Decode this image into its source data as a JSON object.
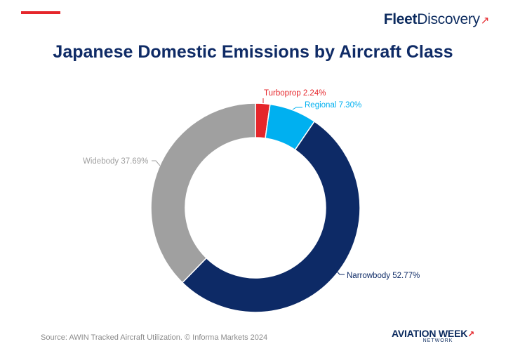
{
  "brand": {
    "part1": "Fleet",
    "part2": "Discovery",
    "swoosh": "↗"
  },
  "colors": {
    "accent": "#e5262b",
    "title": "#0f2b66",
    "turboprop": "#e5262b",
    "regional": "#00b0f0",
    "narrowbody": "#0d2a66",
    "widebody": "#a0a0a0"
  },
  "footer": {
    "source": "Source: AWIN Tracked Aircraft Utilization. © Informa Markets 2024"
  },
  "logo": {
    "line1": "AVIATION WEEK",
    "line2": "NETWORK",
    "tick": "↗"
  },
  "chart_data": {
    "type": "pie",
    "style": "donut",
    "title": "Japanese Domestic Emissions by Aircraft Class",
    "series": [
      {
        "name": "Turboprop",
        "value": 2.24,
        "label": "Turboprop 2.24%",
        "color": "#e5262b"
      },
      {
        "name": "Regional",
        "value": 7.3,
        "label": "Regional 7.30%",
        "color": "#00b0f0"
      },
      {
        "name": "Narrowbody",
        "value": 52.77,
        "label": "Narrowbody 52.77%",
        "color": "#0d2a66"
      },
      {
        "name": "Widebody",
        "value": 37.69,
        "label": "Widebody 37.69%",
        "color": "#a0a0a0"
      }
    ]
  }
}
